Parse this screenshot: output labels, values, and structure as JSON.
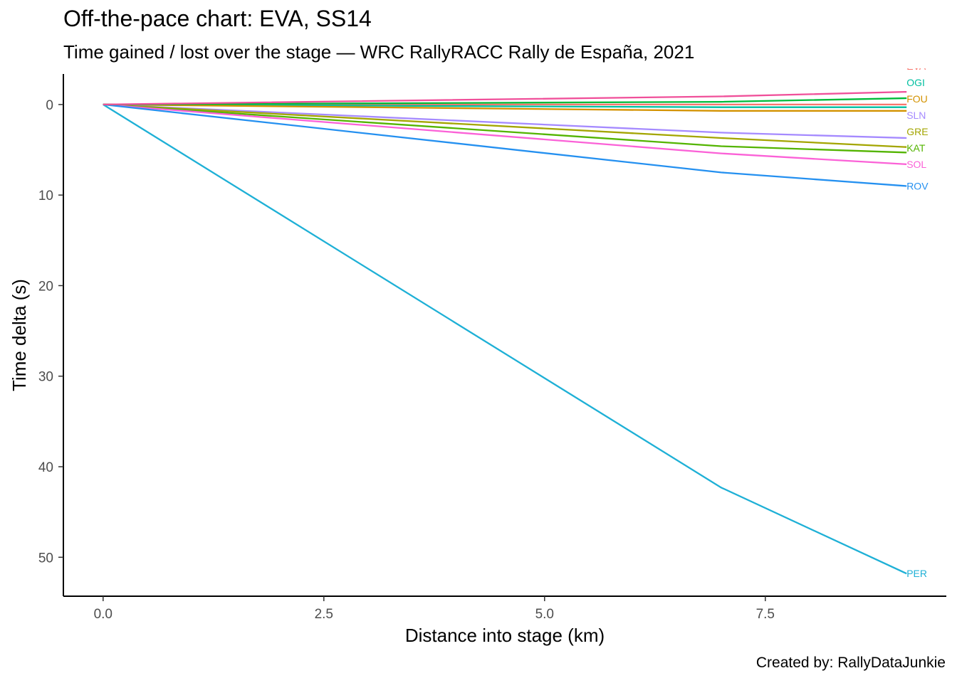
{
  "title": "Off-the-pace chart: EVA, SS14",
  "subtitle": "Time gained / lost over the stage — WRC RallyRACC Rally de España, 2021",
  "caption": "Created by: RallyDataJunkie",
  "chart_data": {
    "type": "line",
    "xlabel": "Distance into stage (km)",
    "ylabel": "Time delta (s)",
    "xlim": [
      -0.45,
      9.55
    ],
    "ylim": [
      -4,
      54.3
    ],
    "y_reversed": true,
    "x_ticks": [
      0,
      2.5,
      5,
      7.5
    ],
    "x_tick_labels": [
      "0.0",
      "2.5",
      "5.0",
      "7.5"
    ],
    "y_ticks": [
      0,
      10,
      20,
      30,
      40,
      50
    ],
    "y_tick_labels": [
      "0",
      "10",
      "20",
      "30",
      "40",
      "50"
    ],
    "grid": false,
    "legend": "none (direct labels at line ends)",
    "series": [
      {
        "name": "EVA",
        "color": "#F8766D",
        "x": [
          0,
          7.0,
          9.1
        ],
        "y": [
          0,
          0,
          0
        ]
      },
      {
        "name": "OGI",
        "color": "#00BFA0",
        "x": [
          0,
          7.0,
          9.1
        ],
        "y": [
          0,
          0.3,
          0.3
        ]
      },
      {
        "name": "FOU",
        "color": "#D39200",
        "x": [
          0,
          7.0,
          9.1
        ],
        "y": [
          0,
          0.7,
          0.7
        ]
      },
      {
        "name": "SLN",
        "color": "#A58AFF",
        "x": [
          0,
          7.0,
          9.1
        ],
        "y": [
          0,
          3.1,
          3.7
        ]
      },
      {
        "name": "GRE",
        "color": "#A3A500",
        "x": [
          0,
          7.0,
          9.1
        ],
        "y": [
          0,
          3.7,
          4.7
        ]
      },
      {
        "name": "KAT",
        "color": "#53B400",
        "x": [
          0,
          7.0,
          9.1
        ],
        "y": [
          0,
          4.6,
          5.3
        ]
      },
      {
        "name": "SOL",
        "color": "#FB61D7",
        "x": [
          0,
          7.0,
          9.1
        ],
        "y": [
          0,
          5.4,
          6.6
        ]
      },
      {
        "name": "ROV",
        "color": "#2490F0",
        "x": [
          0,
          7.0,
          9.1
        ],
        "y": [
          0,
          7.5,
          9.0
        ]
      },
      {
        "name": "PER",
        "color": "#1EB0D6",
        "x": [
          0,
          7.0,
          9.1
        ],
        "y": [
          0,
          42.3,
          51.8
        ]
      },
      {
        "name": "",
        "color": "#00BA38",
        "x": [
          0,
          7.0,
          9.1
        ],
        "y": [
          0,
          -0.3,
          -0.7
        ]
      },
      {
        "name": "",
        "color": "#F0509A",
        "x": [
          0,
          7.0,
          9.1
        ],
        "y": [
          0,
          -0.9,
          -1.4
        ]
      }
    ]
  }
}
